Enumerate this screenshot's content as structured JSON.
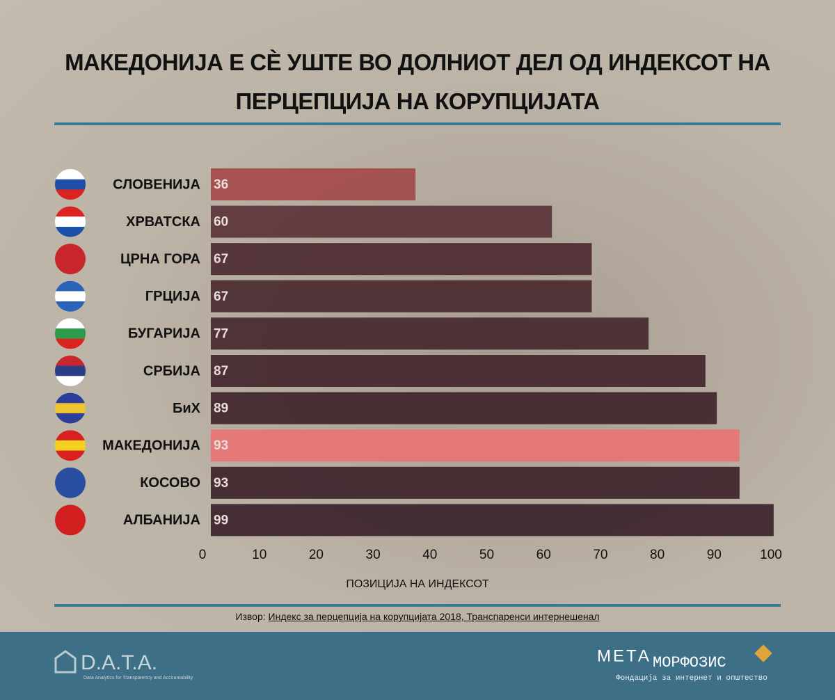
{
  "chart_data": {
    "type": "hbar",
    "title": "МАКЕДОНИЈА Е СЀ УШТЕ ВО ДОЛНИОТ ДЕЛ ОД ИНДЕКСОТ НА ПЕРЦЕПЦИЈА НА КОРУПЦИЈАТА",
    "categories": [
      "СЛОВЕНИЈА",
      "ХРВАТСКА",
      "ЦРНА ГОРА",
      "ГРЦИЈА",
      "БУГАРИЈА",
      "СРБИЈА",
      "БиХ",
      "МАКЕДОНИЈА",
      "КОСОВО",
      "АЛБАНИЈА"
    ],
    "values": [
      36,
      60,
      67,
      67,
      77,
      87,
      89,
      93,
      93,
      99
    ],
    "colors": [
      "#a34a4a",
      "#5a3338",
      "#4d2b31",
      "#4a2a30",
      "#47282e",
      "#43262c",
      "#40252b",
      "#e87474",
      "#3c2329",
      "#39222a"
    ],
    "xlim": [
      0,
      100
    ],
    "xticks": [
      0,
      10,
      20,
      30,
      40,
      50,
      60,
      70,
      80,
      90,
      100
    ],
    "xlabel": "ПОЗИЦИЈА НА ИНДЕКСОТ",
    "source_label": "Извор:",
    "source": "Индекс за перцепција на корупцијата 2018, Транспаренси интернешенал"
  },
  "footer": {
    "left_logo": "D.A.T.A.",
    "left_tagline": "Data Analytics for Transparency and Accountability",
    "right_logo_a": "МЕТА",
    "right_logo_b": "МОРФОЗИС",
    "right_tagline": "Фондација за интернет и општество"
  }
}
